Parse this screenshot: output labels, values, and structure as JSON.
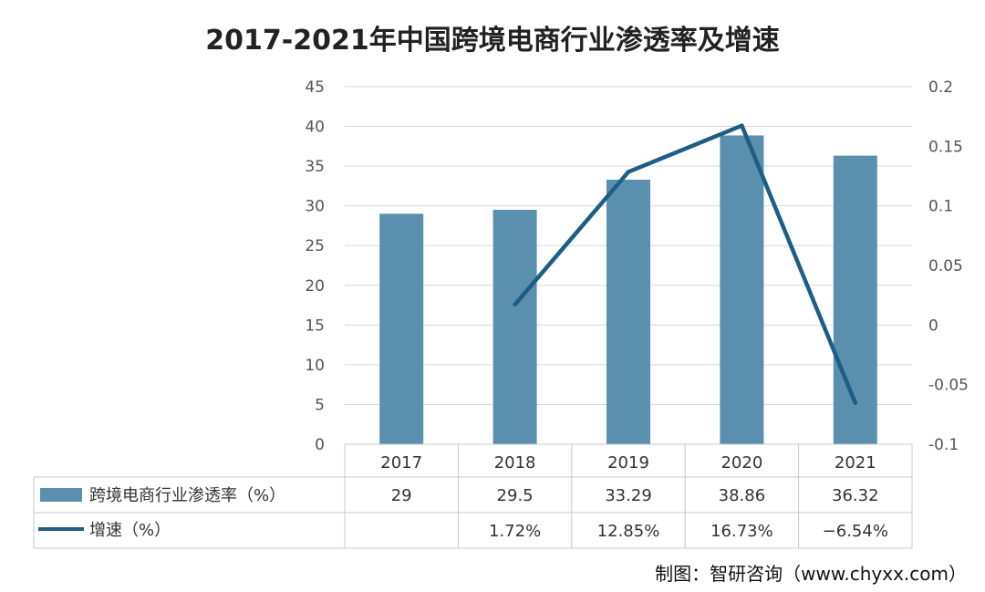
{
  "source": "制图：智研咨询（www.chyxx.com）",
  "colors": {
    "bar": "#5b8fae",
    "line": "#1d5d86",
    "grid": "#d9d9d9",
    "border": "#c8c8c8"
  },
  "chart_data": {
    "type": "bar",
    "title": "2017-2021年中国跨境电商行业渗透率及增速",
    "categories": [
      "2017",
      "2018",
      "2019",
      "2020",
      "2021"
    ],
    "y_left": {
      "min": 0,
      "max": 45,
      "step": 5,
      "ticks": [
        "0",
        "5",
        "10",
        "15",
        "20",
        "25",
        "30",
        "35",
        "40",
        "45"
      ]
    },
    "y_right": {
      "min": -0.1,
      "max": 0.2,
      "step": 0.05,
      "ticks": [
        "-0.1",
        "-0.05",
        "0",
        "0.05",
        "0.1",
        "0.15",
        "0.2"
      ]
    },
    "gridlines": true,
    "series": [
      {
        "name": "跨境电商行业渗透率（%）",
        "type": "bar",
        "axis": "left",
        "values": [
          29,
          29.5,
          33.29,
          38.86,
          36.32
        ],
        "labels": [
          "29",
          "29.5",
          "33.29",
          "38.86",
          "36.32"
        ]
      },
      {
        "name": "增速（%）",
        "type": "line",
        "axis": "right",
        "values": [
          null,
          0.0172,
          0.1285,
          0.1673,
          -0.0654
        ],
        "labels": [
          "",
          "1.72%",
          "12.85%",
          "16.73%",
          "−6.54%"
        ]
      }
    ]
  }
}
